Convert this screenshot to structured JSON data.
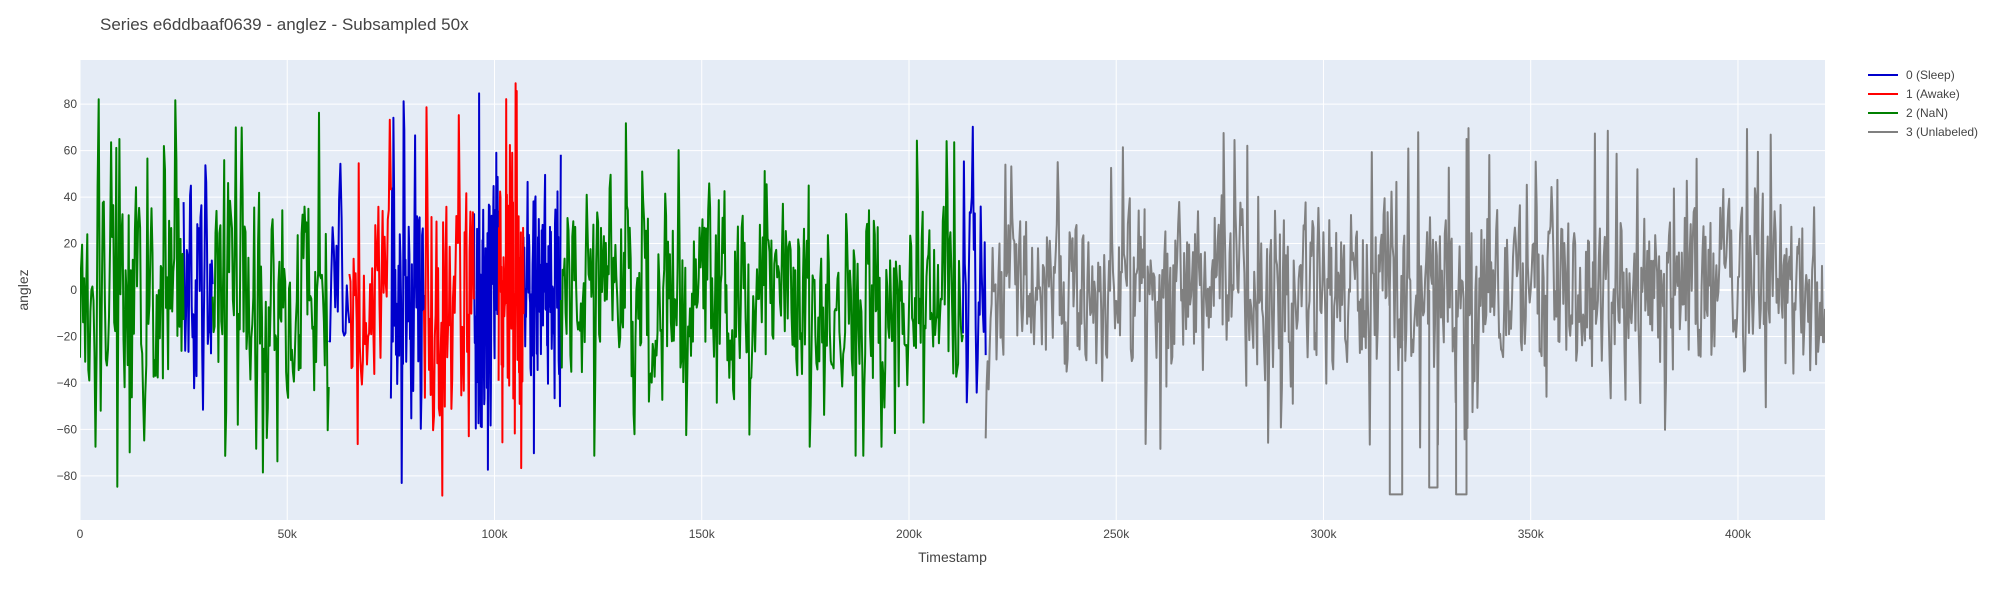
{
  "chart_data": {
    "type": "line",
    "title": "Series e6ddbaaf0639 - anglez - Subsampled 50x",
    "xlabel": "Timestamp",
    "ylabel": "anglez",
    "xlim": [
      0,
      421000
    ],
    "ylim": [
      -99,
      99
    ],
    "x_ticks": [
      0,
      50000,
      100000,
      150000,
      200000,
      250000,
      300000,
      350000,
      400000
    ],
    "x_tick_labels": [
      "0",
      "50k",
      "100k",
      "150k",
      "200k",
      "250k",
      "300k",
      "350k",
      "400k"
    ],
    "y_ticks": [
      -80,
      -60,
      -40,
      -20,
      0,
      20,
      40,
      60,
      80
    ],
    "y_tick_labels": [
      "−80",
      "−60",
      "−40",
      "−20",
      "0",
      "20",
      "40",
      "60",
      "80"
    ],
    "grid": true,
    "legend_position": "top-right",
    "series": [
      {
        "name": "0 (Sleep)",
        "color": "#0000cc",
        "segments": [
          [
            25000,
            32000,
            55,
            36
          ],
          [
            60000,
            65000,
            45,
            16
          ],
          [
            75000,
            83000,
            60,
            52
          ],
          [
            95000,
            101000,
            55,
            74
          ],
          [
            107000,
            116000,
            50,
            90
          ],
          [
            213000,
            218500,
            45,
            23
          ]
        ]
      },
      {
        "name": "1 (Awake)",
        "color": "#ff0000",
        "segments": [
          [
            65000,
            75000,
            45,
            40
          ],
          [
            83000,
            95000,
            60,
            60
          ],
          [
            101000,
            107000,
            65,
            66
          ]
        ]
      },
      {
        "name": "2 (NaN)",
        "color": "#008000",
        "segments": [
          [
            0,
            25000,
            55,
            100
          ],
          [
            32000,
            60000,
            50,
            120
          ],
          [
            116000,
            213000,
            45,
            420
          ]
        ]
      },
      {
        "name": "3 (Unlabeled)",
        "color": "#808080",
        "segments": [
          [
            218500,
            421000,
            40,
            850
          ]
        ],
        "events": [
          [
            316000,
            319000,
            -88
          ],
          [
            325500,
            327500,
            -85
          ],
          [
            332000,
            334500,
            -88
          ]
        ]
      }
    ]
  }
}
